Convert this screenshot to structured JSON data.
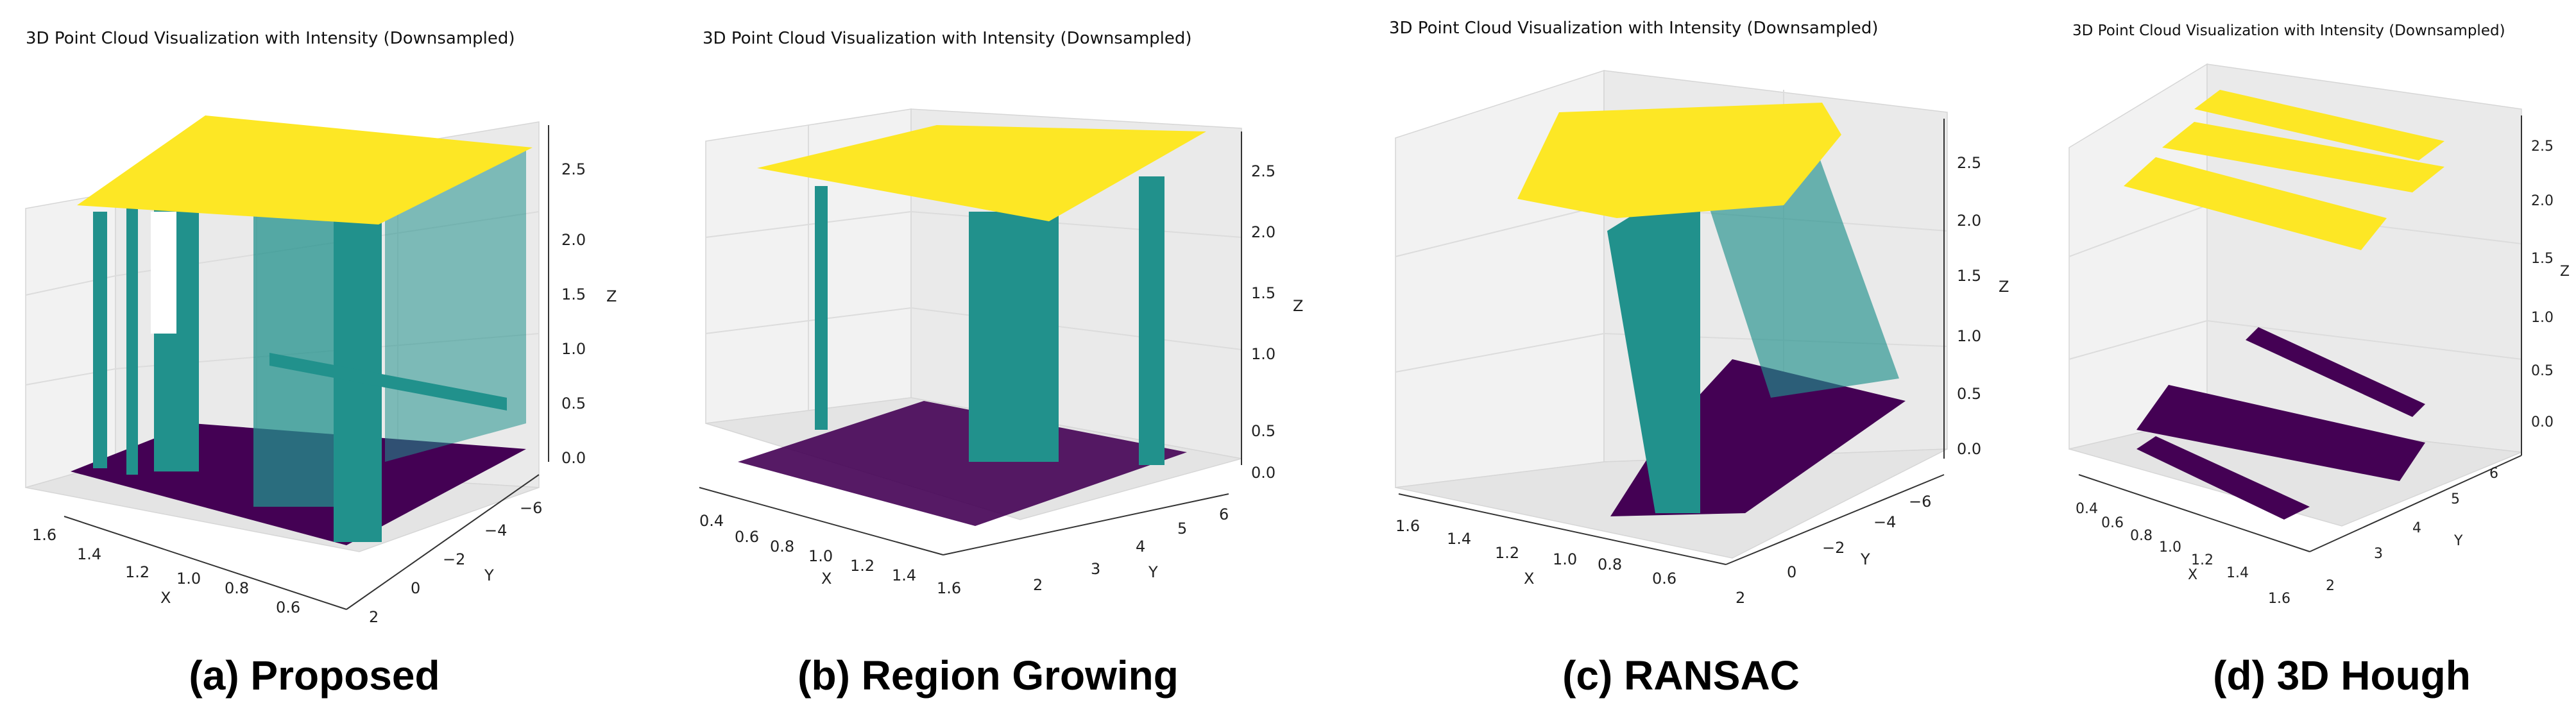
{
  "figure": {
    "colors": {
      "floor": "#440154",
      "wall": "#21918c",
      "ceiling": "#fde725",
      "pane": "#f2f2f2"
    }
  },
  "chart_data": [
    {
      "type": "scatter",
      "subtype": "3d-point-cloud",
      "title": "3D Point Cloud Visualization with Intensity (Downsampled)",
      "caption": "(a) Proposed",
      "xlabel": "X",
      "ylabel": "Y",
      "zlabel": "Z",
      "x_ticks": [
        "1.6",
        "1.4",
        "1.2",
        "1.0",
        "0.8",
        "0.6"
      ],
      "y_ticks": [
        "2",
        "0",
        "−2",
        "−4",
        "−6"
      ],
      "z_ticks": [
        "0.0",
        "0.5",
        "1.0",
        "1.5",
        "2.0",
        "2.5"
      ],
      "xlim": [
        0.5,
        1.7
      ],
      "ylim": [
        2,
        -7
      ],
      "zlim": [
        0,
        2.7
      ],
      "series": [
        {
          "name": "floor",
          "label": "Floor plane",
          "color": "#440154"
        },
        {
          "name": "wall",
          "label": "Wall planes",
          "color": "#21918c"
        },
        {
          "name": "ceiling",
          "label": "Ceiling plane",
          "color": "#fde725"
        }
      ]
    },
    {
      "type": "scatter",
      "subtype": "3d-point-cloud",
      "title": "3D Point Cloud Visualization with Intensity (Downsampled)",
      "caption": "(b) Region Growing",
      "xlabel": "X",
      "ylabel": "Y",
      "zlabel": "Z",
      "x_ticks": [
        "0.4",
        "0.6",
        "0.8",
        "1.0",
        "1.2",
        "1.4",
        "1.6"
      ],
      "y_ticks": [
        "2",
        "3",
        "4",
        "5",
        "6"
      ],
      "z_ticks": [
        "0.0",
        "0.5",
        "1.0",
        "1.5",
        "2.0",
        "2.5"
      ],
      "xlim": [
        0.4,
        1.7
      ],
      "ylim": [
        1.5,
        6.5
      ],
      "zlim": [
        0,
        2.7
      ],
      "series": [
        {
          "name": "floor",
          "label": "Floor plane",
          "color": "#440154"
        },
        {
          "name": "wall",
          "label": "Wall planes",
          "color": "#21918c"
        },
        {
          "name": "ceiling",
          "label": "Ceiling plane",
          "color": "#fde725"
        }
      ]
    },
    {
      "type": "scatter",
      "subtype": "3d-point-cloud",
      "title": "3D Point Cloud Visualization with Intensity (Downsampled)",
      "caption": "(c) RANSAC",
      "xlabel": "X",
      "ylabel": "Y",
      "zlabel": "Z",
      "x_ticks": [
        "1.6",
        "1.4",
        "1.2",
        "1.0",
        "0.8",
        "0.6"
      ],
      "y_ticks": [
        "2",
        "0",
        "−2",
        "−4",
        "−6"
      ],
      "z_ticks": [
        "0.0",
        "0.5",
        "1.0",
        "1.5",
        "2.0",
        "2.5"
      ],
      "xlim": [
        0.5,
        1.7
      ],
      "ylim": [
        2,
        -7
      ],
      "zlim": [
        0,
        2.7
      ],
      "series": [
        {
          "name": "floor",
          "label": "Floor plane",
          "color": "#440154"
        },
        {
          "name": "wall",
          "label": "Wall planes",
          "color": "#21918c"
        },
        {
          "name": "ceiling",
          "label": "Ceiling plane",
          "color": "#fde725"
        }
      ]
    },
    {
      "type": "scatter",
      "subtype": "3d-point-cloud",
      "title": "3D Point Cloud Visualization with Intensity (Downsampled)",
      "caption": "(d) 3D Hough",
      "xlabel": "X",
      "ylabel": "Y",
      "zlabel": "Z",
      "x_ticks": [
        "0.4",
        "0.6",
        "0.8",
        "1.0",
        "1.2",
        "1.4",
        "1.6"
      ],
      "y_ticks": [
        "2",
        "3",
        "4",
        "5",
        "6"
      ],
      "z_ticks": [
        "0.0",
        "0.5",
        "1.0",
        "1.5",
        "2.0",
        "2.5"
      ],
      "xlim": [
        0.4,
        1.7
      ],
      "ylim": [
        1.5,
        6.5
      ],
      "zlim": [
        0,
        2.7
      ],
      "series": [
        {
          "name": "floor",
          "label": "Floor plane",
          "color": "#440154"
        },
        {
          "name": "ceiling",
          "label": "Ceiling plane",
          "color": "#fde725"
        }
      ]
    }
  ]
}
